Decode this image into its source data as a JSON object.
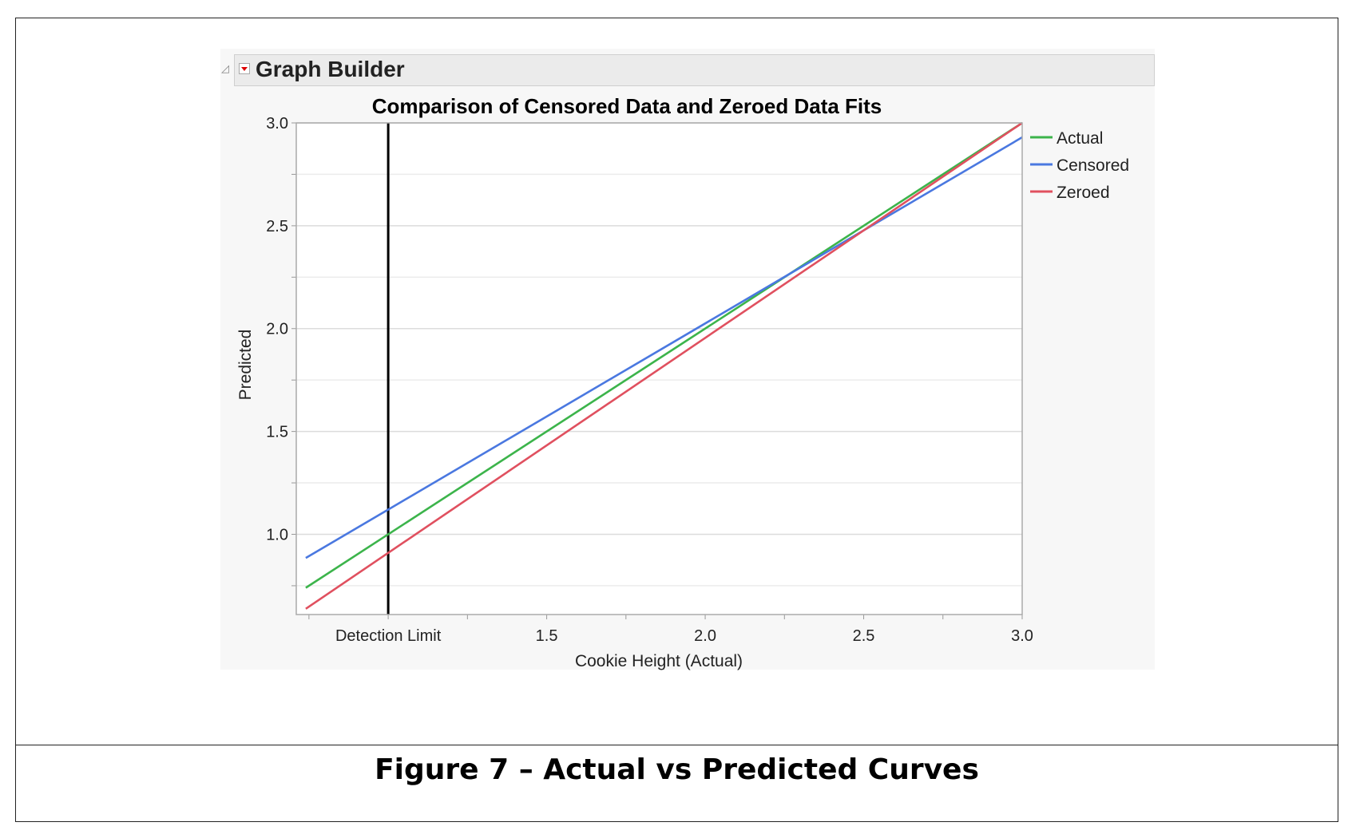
{
  "panel": {
    "title": "Graph Builder"
  },
  "caption": "Figure 7 – Actual vs Predicted Curves",
  "chart_data": {
    "type": "line",
    "title": "Comparison of Censored Data and Zeroed Data Fits",
    "xlabel": "Cookie Height (Actual)",
    "ylabel": "Predicted",
    "xlim": [
      0.71,
      3.0
    ],
    "ylim": [
      0.61,
      3.0
    ],
    "xticks": [
      {
        "value": 1.0,
        "label": "Detection Limit"
      },
      {
        "value": 1.5,
        "label": "1.5"
      },
      {
        "value": 2.0,
        "label": "2.0"
      },
      {
        "value": 2.5,
        "label": "2.5"
      },
      {
        "value": 3.0,
        "label": "3.0"
      }
    ],
    "yticks": [
      {
        "value": 1.0,
        "label": "1.0"
      },
      {
        "value": 1.5,
        "label": "1.5"
      },
      {
        "value": 2.0,
        "label": "2.0"
      },
      {
        "value": 2.5,
        "label": "2.5"
      },
      {
        "value": 3.0,
        "label": "3.0"
      }
    ],
    "grid": true,
    "legend": "right",
    "reference_line": {
      "x": 1.0,
      "color": "#000000"
    },
    "series": [
      {
        "name": "Actual",
        "color": "#3cb44b",
        "x": [
          0.74,
          3.0
        ],
        "y": [
          0.74,
          3.0
        ]
      },
      {
        "name": "Censored",
        "color": "#4a78e0",
        "x": [
          0.74,
          3.0
        ],
        "y": [
          0.885,
          2.93
        ]
      },
      {
        "name": "Zeroed",
        "color": "#e0505f",
        "x": [
          0.74,
          3.0
        ],
        "y": [
          0.638,
          3.0
        ]
      }
    ]
  }
}
